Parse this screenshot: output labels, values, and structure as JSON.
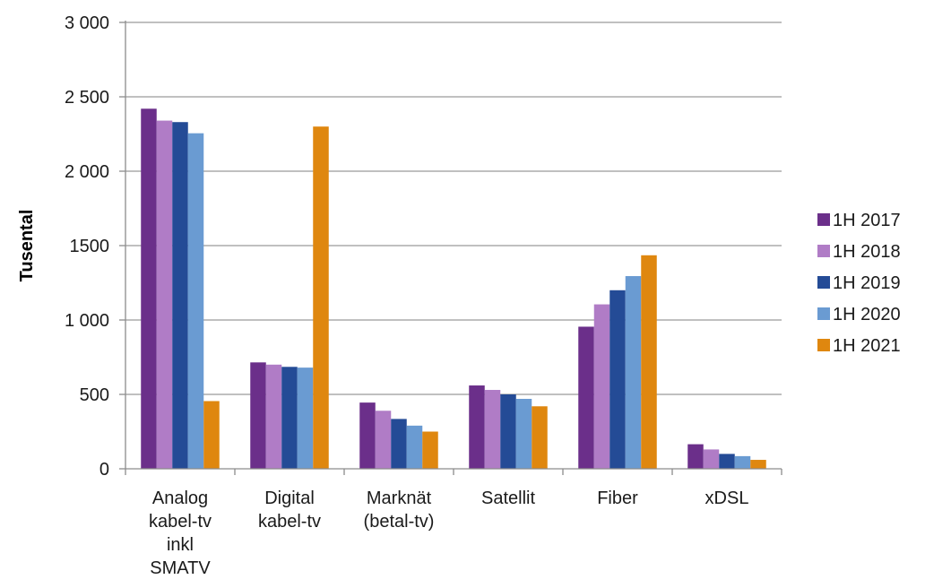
{
  "chart_data": {
    "type": "bar",
    "title": "",
    "xlabel": "",
    "ylabel": "Tusental",
    "ylim": [
      0,
      3000
    ],
    "yticks": [
      0,
      500,
      1000,
      1500,
      2000,
      2500,
      3000
    ],
    "ytick_labels": [
      "0",
      "500",
      "1 000",
      "1500",
      "2 000",
      "2 500",
      "3 000"
    ],
    "grid": true,
    "legend_position": "right",
    "categories": [
      [
        "Analog",
        "kabel-tv",
        "inkl",
        "SMATV"
      ],
      [
        "Digital",
        "kabel-tv"
      ],
      [
        "Marknät",
        "(betal-tv)"
      ],
      [
        "Satellit"
      ],
      [
        "Fiber"
      ],
      [
        "xDSL"
      ]
    ],
    "series": [
      {
        "name": "1H 2017",
        "color": "#6b2f8a",
        "values": [
          2420,
          715,
          445,
          560,
          955,
          165
        ]
      },
      {
        "name": "1H 2018",
        "color": "#b07cc6",
        "values": [
          2340,
          700,
          390,
          530,
          1105,
          130
        ]
      },
      {
        "name": "1H 2019",
        "color": "#244b96",
        "values": [
          2330,
          685,
          335,
          500,
          1200,
          100
        ]
      },
      {
        "name": "1H 2020",
        "color": "#6a9bd2",
        "values": [
          2255,
          680,
          290,
          470,
          1295,
          85
        ]
      },
      {
        "name": "1H 2021",
        "color": "#df870f",
        "values": [
          455,
          2300,
          250,
          420,
          1435,
          60
        ]
      }
    ]
  }
}
